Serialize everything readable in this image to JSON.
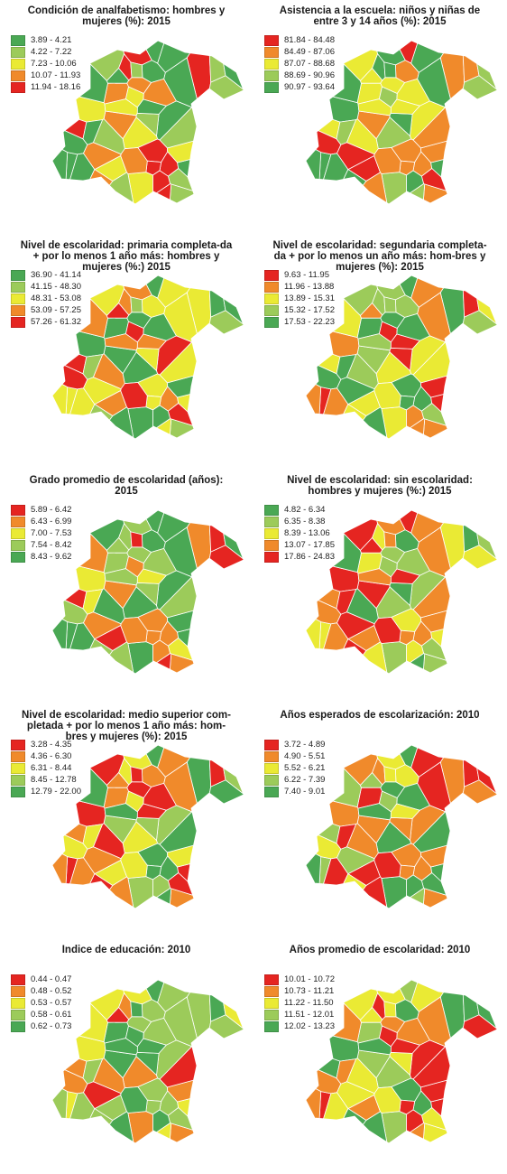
{
  "colors": {
    "red": "#e52521",
    "orange": "#f08a2b",
    "yellow": "#eaea34",
    "lightgreen": "#9ccb5a",
    "green": "#4aa854"
  },
  "panels": [
    {
      "title": "Condición de analfabetismo: hombres y mujeres (%): 2015",
      "legend": [
        {
          "label": "3.89 - 4.21",
          "color": "#4aa854"
        },
        {
          "label": "4.22 - 7.22",
          "color": "#9ccb5a"
        },
        {
          "label": "7.23 - 10.06",
          "color": "#eaea34"
        },
        {
          "label": "10.07 - 11.93",
          "color": "#f08a2b"
        },
        {
          "label": "11.94 - 18.16",
          "color": "#e52521"
        }
      ]
    },
    {
      "title": "Asistencia a la escuela: niños y niñas de entre 3 y 14 años (%): 2015",
      "legend": [
        {
          "label": "81.84 - 84.48",
          "color": "#e52521"
        },
        {
          "label": "84.49 - 87.06",
          "color": "#f08a2b"
        },
        {
          "label": "87.07 - 88.68",
          "color": "#eaea34"
        },
        {
          "label": "88.69 - 90.96",
          "color": "#9ccb5a"
        },
        {
          "label": "90.97 - 93.64",
          "color": "#4aa854"
        }
      ]
    },
    {
      "title": "Nivel de escolaridad: primaria completa-da + por lo menos 1 año más: hombres y mujeres (%:) 2015",
      "legend": [
        {
          "label": "36.90 - 41.14",
          "color": "#4aa854"
        },
        {
          "label": "41.15 - 48.30",
          "color": "#9ccb5a"
        },
        {
          "label": "48.31 - 53.08",
          "color": "#eaea34"
        },
        {
          "label": "53.09 - 57.25",
          "color": "#f08a2b"
        },
        {
          "label": "57.26 - 61.32",
          "color": "#e52521"
        }
      ]
    },
    {
      "title": "Nivel de escolaridad: segundaria completa-da + por lo menos un año más: hom-bres y mujeres (%): 2015",
      "legend": [
        {
          "label": "9.63 - 11.95",
          "color": "#e52521"
        },
        {
          "label": "11.96 - 13.88",
          "color": "#f08a2b"
        },
        {
          "label": "13.89 - 15.31",
          "color": "#eaea34"
        },
        {
          "label": "15.32 - 17.52",
          "color": "#9ccb5a"
        },
        {
          "label": "17.53 - 22.23",
          "color": "#4aa854"
        }
      ]
    },
    {
      "title": "Grado promedio de escolaridad (años): 2015",
      "legend": [
        {
          "label": "5.89 - 6.42",
          "color": "#e52521"
        },
        {
          "label": "6.43 - 6.99",
          "color": "#f08a2b"
        },
        {
          "label": "7.00 - 7.53",
          "color": "#eaea34"
        },
        {
          "label": "7.54 - 8.42",
          "color": "#9ccb5a"
        },
        {
          "label": "8.43 - 9.62",
          "color": "#4aa854"
        }
      ]
    },
    {
      "title": "Nivel de escolaridad: sin escolaridad: hombres y mujeres (%:) 2015",
      "legend": [
        {
          "label": "4.82 - 6.34",
          "color": "#4aa854"
        },
        {
          "label": "6.35 - 8.38",
          "color": "#9ccb5a"
        },
        {
          "label": "8.39 - 13.06",
          "color": "#eaea34"
        },
        {
          "label": "13.07 - 17.85",
          "color": "#f08a2b"
        },
        {
          "label": "17.86 - 24.83",
          "color": "#e52521"
        }
      ]
    },
    {
      "title": "Nivel de escolaridad: medio superior com-pletada + por lo menos 1 año más: hom-bres y mujeres (%): 2015",
      "legend": [
        {
          "label": "3.28 - 4.35",
          "color": "#e52521"
        },
        {
          "label": "4.36 - 6.30",
          "color": "#f08a2b"
        },
        {
          "label": "6.31 - 8.44",
          "color": "#eaea34"
        },
        {
          "label": "8.45 - 12.78",
          "color": "#9ccb5a"
        },
        {
          "label": "12.79 - 22.00",
          "color": "#4aa854"
        }
      ]
    },
    {
      "title": "Años esperados de escolarización: 2010",
      "legend": [
        {
          "label": "3.72 - 4.89",
          "color": "#e52521"
        },
        {
          "label": "4.90 - 5.51",
          "color": "#f08a2b"
        },
        {
          "label": "5.52 - 6.21",
          "color": "#eaea34"
        },
        {
          "label": "6.22 - 7.39",
          "color": "#9ccb5a"
        },
        {
          "label": "7.40 - 9.01",
          "color": "#4aa854"
        }
      ]
    },
    {
      "title": "Indice de educación: 2010",
      "legend": [
        {
          "label": "0.44 - 0.47",
          "color": "#e52521"
        },
        {
          "label": "0.48 - 0.52",
          "color": "#f08a2b"
        },
        {
          "label": "0.53 - 0.57",
          "color": "#eaea34"
        },
        {
          "label": "0.58 - 0.61",
          "color": "#9ccb5a"
        },
        {
          "label": "0.62 - 0.73",
          "color": "#4aa854"
        }
      ]
    },
    {
      "title": "Años promedio de escolaridad: 2010",
      "legend": [
        {
          "label": "10.01 - 10.72",
          "color": "#e52521"
        },
        {
          "label": "10.73 - 11.21",
          "color": "#f08a2b"
        },
        {
          "label": "11.22 - 11.50",
          "color": "#eaea34"
        },
        {
          "label": "11.51 - 12.01",
          "color": "#9ccb5a"
        },
        {
          "label": "12.02 - 13.23",
          "color": "#4aa854"
        }
      ]
    }
  ]
}
